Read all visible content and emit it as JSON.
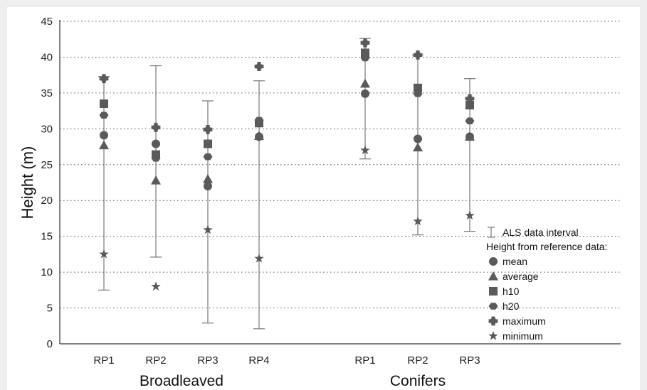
{
  "chart_data": {
    "type": "scatter",
    "ylabel": "Height (m)",
    "ylim": [
      0,
      45
    ],
    "yticks": [
      "0",
      "5",
      "10",
      "15",
      "20",
      "25",
      "30",
      "35",
      "40",
      "45"
    ],
    "grid": "horizontal dotted",
    "groups": [
      {
        "label": "Broadleaved",
        "categories": [
          "RP1",
          "RP2",
          "RP3",
          "RP4"
        ]
      },
      {
        "label": "Conifers",
        "categories": [
          "RP1",
          "RP2",
          "RP3"
        ]
      }
    ],
    "legend": {
      "placement": "right",
      "interval_label": "ALS data interval",
      "title": "Height from reference data:",
      "entries": [
        {
          "key": "mean",
          "label": "mean",
          "marker": "circle"
        },
        {
          "key": "average",
          "label": "average",
          "marker": "triangle"
        },
        {
          "key": "h10",
          "label": "h10",
          "marker": "square"
        },
        {
          "key": "h20",
          "label": "h20",
          "marker": "hexagon"
        },
        {
          "key": "maximum",
          "label": "maximum",
          "marker": "cross"
        },
        {
          "key": "minimum",
          "label": "minimum",
          "marker": "star"
        }
      ]
    },
    "plots": [
      {
        "group": "Broadleaved",
        "category": "RP1",
        "als_min": 7.5,
        "als_max": 37.3,
        "mean": 29.1,
        "average": 27.7,
        "h10": 33.5,
        "h20": 31.9,
        "maximum": 37.0,
        "minimum": 12.5
      },
      {
        "group": "Broadleaved",
        "category": "RP2",
        "als_min": 12.1,
        "als_max": 38.8,
        "mean": 27.9,
        "average": 22.8,
        "h10": 26.4,
        "h20": 25.9,
        "maximum": 30.2,
        "minimum": 8.0
      },
      {
        "group": "Broadleaved",
        "category": "RP3",
        "als_min": 2.9,
        "als_max": 33.9,
        "mean": 22.0,
        "average": 23.0,
        "h10": 27.9,
        "h20": 26.1,
        "maximum": 29.9,
        "minimum": 15.9
      },
      {
        "group": "Broadleaved",
        "category": "RP4",
        "als_min": 2.1,
        "als_max": 36.7,
        "mean": 28.9,
        "average": 29.0,
        "h10": 30.8,
        "h20": 31.2,
        "maximum": 38.7,
        "minimum": 11.9
      },
      {
        "group": "Conifers",
        "category": "RP1",
        "als_min": 25.8,
        "als_max": 42.6,
        "mean": 34.9,
        "average": 36.3,
        "h10": 40.6,
        "h20": 39.9,
        "maximum": 42.0,
        "minimum": 27.0
      },
      {
        "group": "Conifers",
        "category": "RP2",
        "als_min": 15.2,
        "als_max": 40.3,
        "mean": 28.6,
        "average": 27.4,
        "h10": 35.7,
        "h20": 34.9,
        "maximum": 40.3,
        "minimum": 17.1
      },
      {
        "group": "Conifers",
        "category": "RP3",
        "als_min": 15.7,
        "als_max": 37.0,
        "mean": 28.9,
        "average": 28.9,
        "h10": 33.3,
        "h20": 31.1,
        "maximum": 34.2,
        "minimum": 17.9
      }
    ]
  },
  "colors": {
    "marker": "#5a5a5a",
    "interval_line": "#777777",
    "grid": "#555555",
    "axis": "#333333"
  }
}
